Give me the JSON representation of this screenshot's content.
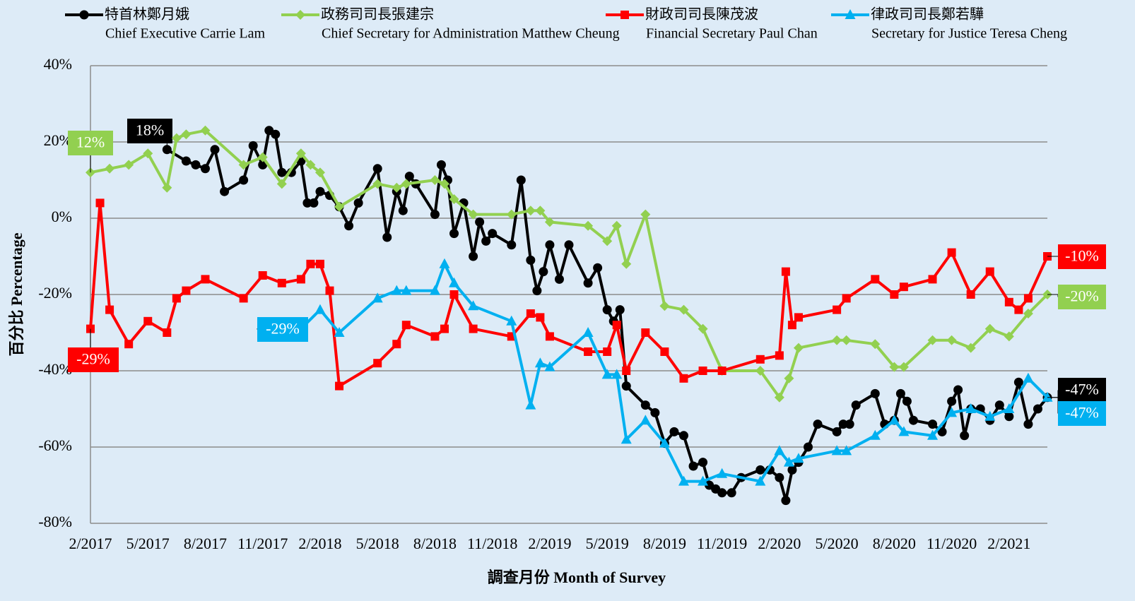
{
  "chart_data": {
    "type": "line",
    "x_label": "調查月份 Month of Survey",
    "y_label": "百分比 Percentage",
    "xlim": [
      "2/2017",
      "4/2021"
    ],
    "xticks": [
      "2/2017",
      "5/2017",
      "8/2017",
      "11/2017",
      "2/2018",
      "5/2018",
      "8/2018",
      "11/2018",
      "2/2019",
      "5/2019",
      "8/2019",
      "11/2019",
      "2/2020",
      "5/2020",
      "8/2020",
      "11/2020",
      "2/2021"
    ],
    "ylim": [
      -80,
      40
    ],
    "yticks": [
      {
        "value": -80,
        "label": "-80%"
      },
      {
        "value": -60,
        "label": "-60%"
      },
      {
        "value": -40,
        "label": "-40%"
      },
      {
        "value": -20,
        "label": "-20%"
      },
      {
        "value": 0,
        "label": "0%"
      },
      {
        "value": 20,
        "label": "20%"
      },
      {
        "value": 40,
        "label": "40%"
      }
    ],
    "grid": true,
    "series": [
      {
        "name": "特首林鄭月娥",
        "name_en": "Chief Executive Carrie Lam",
        "color": "#000000",
        "marker": "circle",
        "x": [
          "6/2017",
          "7/2017",
          "7/2017",
          "8/2017",
          "8/2017",
          "9/2017",
          "10/2017",
          "10/2017",
          "11/2017",
          "11/2017",
          "11/2017",
          "12/2017",
          "12/2017",
          "1/2018",
          "1/2018",
          "1/2018",
          "2/2018",
          "2/2018",
          "3/2018",
          "3/2018",
          "4/2018",
          "5/2018",
          "5/2018",
          "6/2018",
          "6/2018",
          "6/2018",
          "7/2018",
          "8/2018",
          "8/2018",
          "8/2018",
          "9/2018",
          "9/2018",
          "10/2018",
          "10/2018",
          "10/2018",
          "11/2018",
          "12/2018",
          "12/2018",
          "1/2019",
          "1/2019",
          "1/2019",
          "2/2019",
          "2/2019",
          "3/2019",
          "4/2019",
          "4/2019",
          "5/2019",
          "5/2019",
          "5/2019",
          "6/2019",
          "7/2019",
          "7/2019",
          "8/2019",
          "8/2019",
          "9/2019",
          "9/2019",
          "10/2019",
          "10/2019",
          "10/2019",
          "11/2019",
          "11/2019",
          "12/2019",
          "1/2020",
          "1/2020",
          "2/2020",
          "2/2020",
          "2/2020",
          "3/2020",
          "3/2020",
          "4/2020",
          "5/2020",
          "5/2020",
          "5/2020",
          "6/2020",
          "7/2020",
          "7/2020",
          "8/2020",
          "8/2020",
          "8/2020",
          "9/2020",
          "10/2020",
          "10/2020",
          "11/2020",
          "11/2020",
          "11/2020",
          "12/2020",
          "12/2020",
          "1/2021",
          "1/2021",
          "2/2021",
          "2/2021",
          "3/2021",
          "3/2021",
          "4/2021"
        ],
        "values": [
          18,
          15,
          14,
          13,
          18,
          7,
          10,
          19,
          14,
          23,
          22,
          12,
          12,
          15,
          4,
          4,
          7,
          6,
          3,
          -2,
          4,
          13,
          -5,
          7,
          2,
          11,
          9,
          1,
          14,
          10,
          -4,
          4,
          -10,
          -1,
          -6,
          -4,
          -7,
          10,
          -11,
          -19,
          -14,
          -7,
          -16,
          -7,
          -17,
          -13,
          -24,
          -27,
          -24,
          -44,
          -49,
          -51,
          -59,
          -56,
          -57,
          -65,
          -64,
          -70,
          -71,
          -72,
          -72,
          -68,
          -66,
          -66,
          -68,
          -74,
          -66,
          -64,
          -60,
          -54,
          -56,
          -54,
          -54,
          -49,
          -46,
          -54,
          -53,
          -46,
          -48,
          -53,
          -54,
          -56,
          -48,
          -45,
          -57,
          -50,
          -50,
          -53,
          -49,
          -52,
          -43,
          -54,
          -50,
          -47
        ],
        "value_labels": [
          "18%",
          null,
          null,
          null,
          null,
          null,
          null,
          null,
          null,
          null,
          null,
          null,
          null,
          null,
          null,
          null,
          null,
          null,
          null,
          null,
          null,
          null,
          null,
          null,
          null,
          null,
          null,
          null,
          null,
          null,
          null,
          null,
          null,
          null,
          null,
          null,
          null,
          null,
          null,
          null,
          null,
          null,
          null,
          null,
          null,
          null,
          null,
          null,
          null,
          null,
          null,
          null,
          null,
          null,
          null,
          null,
          null,
          null,
          null,
          null,
          null,
          null,
          null,
          null,
          null,
          null,
          null,
          null,
          null,
          null,
          null,
          null,
          null,
          null,
          null,
          null,
          null,
          null,
          null,
          null,
          null,
          null,
          null,
          null,
          null,
          null,
          null,
          null,
          null,
          null,
          null,
          null,
          null,
          "-47%"
        ]
      },
      {
        "name": "政務司司長張建宗",
        "name_en": "Chief Secretary for Administration Matthew Cheung",
        "color": "#92d050",
        "marker": "diamond",
        "x": [
          "2/2017",
          "3/2017",
          "4/2017",
          "5/2017",
          "6/2017",
          "6/2017",
          "7/2017",
          "8/2017",
          "10/2017",
          "11/2017",
          "12/2017",
          "1/2018",
          "1/2018",
          "2/2018",
          "3/2018",
          "5/2018",
          "6/2018",
          "6/2018",
          "8/2018",
          "8/2018",
          "9/2018",
          "10/2018",
          "12/2018",
          "1/2019",
          "1/2019",
          "2/2019",
          "4/2019",
          "5/2019",
          "5/2019",
          "6/2019",
          "7/2019",
          "8/2019",
          "9/2019",
          "10/2019",
          "11/2019",
          "1/2020",
          "2/2020",
          "2/2020",
          "3/2020",
          "5/2020",
          "5/2020",
          "7/2020",
          "8/2020",
          "8/2020",
          "10/2020",
          "11/2020",
          "12/2020",
          "1/2021",
          "2/2021",
          "3/2021",
          "4/2021"
        ],
        "values": [
          12,
          13,
          14,
          17,
          8,
          21,
          22,
          23,
          14,
          16,
          9,
          17,
          14,
          12,
          3,
          9,
          8,
          9,
          10,
          9,
          5,
          1,
          1,
          2,
          2,
          -1,
          -2,
          -6,
          -2,
          -12,
          1,
          -23,
          -24,
          -29,
          -40,
          -40,
          -47,
          -42,
          -34,
          -32,
          -32,
          -33,
          -39,
          -39,
          -32,
          -32,
          -34,
          -29,
          -31,
          -25,
          -20
        ],
        "value_labels": [
          "12%",
          null,
          null,
          null,
          null,
          null,
          null,
          null,
          null,
          null,
          null,
          null,
          null,
          null,
          null,
          null,
          null,
          null,
          null,
          null,
          null,
          null,
          null,
          null,
          null,
          null,
          null,
          null,
          null,
          null,
          null,
          null,
          null,
          null,
          null,
          null,
          null,
          null,
          null,
          null,
          null,
          null,
          null,
          null,
          null,
          null,
          null,
          null,
          null,
          null,
          "-20%"
        ]
      },
      {
        "name": "財政司司長陳茂波",
        "name_en": "Financial Secretary Paul Chan",
        "color": "#ff0000",
        "marker": "square",
        "x": [
          "2/2017",
          "2/2017",
          "3/2017",
          "4/2017",
          "5/2017",
          "6/2017",
          "6/2017",
          "7/2017",
          "8/2017",
          "10/2017",
          "11/2017",
          "12/2017",
          "1/2018",
          "1/2018",
          "2/2018",
          "2/2018",
          "3/2018",
          "5/2018",
          "6/2018",
          "6/2018",
          "8/2018",
          "8/2018",
          "9/2018",
          "10/2018",
          "12/2018",
          "1/2019",
          "1/2019",
          "2/2019",
          "4/2019",
          "5/2019",
          "5/2019",
          "6/2019",
          "7/2019",
          "8/2019",
          "9/2019",
          "10/2019",
          "11/2019",
          "1/2020",
          "2/2020",
          "2/2020",
          "2/2020",
          "3/2020",
          "5/2020",
          "5/2020",
          "7/2020",
          "8/2020",
          "8/2020",
          "10/2020",
          "11/2020",
          "12/2020",
          "1/2021",
          "2/2021",
          "2/2021",
          "3/2021",
          "4/2021"
        ],
        "values": [
          -29,
          4,
          -24,
          -33,
          -27,
          -30,
          -21,
          -19,
          -16,
          -21,
          -15,
          -17,
          -16,
          -12,
          -12,
          -19,
          -44,
          -38,
          -33,
          -28,
          -31,
          -29,
          -20,
          -29,
          -31,
          -25,
          -26,
          -31,
          -35,
          -35,
          -28,
          -40,
          -30,
          -35,
          -42,
          -40,
          -40,
          -37,
          -36,
          -14,
          -28,
          -26,
          -24,
          -21,
          -16,
          -20,
          -18,
          -16,
          -9,
          -20,
          -14,
          -22,
          -24,
          -21,
          -10
        ],
        "value_labels": [
          "-29%",
          null,
          null,
          null,
          null,
          null,
          null,
          null,
          null,
          null,
          null,
          null,
          null,
          null,
          null,
          null,
          null,
          null,
          null,
          null,
          null,
          null,
          null,
          null,
          null,
          null,
          null,
          null,
          null,
          null,
          null,
          null,
          null,
          null,
          null,
          null,
          null,
          null,
          null,
          null,
          null,
          null,
          null,
          null,
          null,
          null,
          null,
          null,
          null,
          null,
          null,
          null,
          null,
          null,
          "-10%"
        ]
      },
      {
        "name": "律政司司長鄭若驊",
        "name_en": "Secretary for Justice Teresa Cheng",
        "color": "#00b0f0",
        "marker": "triangle",
        "x": [
          "1/2018",
          "2/2018",
          "3/2018",
          "5/2018",
          "6/2018",
          "6/2018",
          "8/2018",
          "8/2018",
          "9/2018",
          "10/2018",
          "12/2018",
          "1/2019",
          "1/2019",
          "2/2019",
          "4/2019",
          "5/2019",
          "5/2019",
          "6/2019",
          "7/2019",
          "8/2019",
          "9/2019",
          "10/2019",
          "11/2019",
          "1/2020",
          "2/2020",
          "2/2020",
          "3/2020",
          "5/2020",
          "5/2020",
          "7/2020",
          "8/2020",
          "8/2020",
          "10/2020",
          "11/2020",
          "12/2020",
          "1/2021",
          "2/2021",
          "3/2021",
          "4/2021"
        ],
        "values": [
          -29,
          -24,
          -30,
          -21,
          -19,
          -19,
          -19,
          -12,
          -17,
          -23,
          -27,
          -49,
          -38,
          -39,
          -30,
          -41,
          -41,
          -58,
          -53,
          -59,
          -69,
          -69,
          -67,
          -69,
          -61,
          -64,
          -63,
          -61,
          -61,
          -57,
          -53,
          -56,
          -57,
          -51,
          -50,
          -52,
          -50,
          -42,
          -47
        ],
        "value_labels": [
          "-29%",
          null,
          null,
          null,
          null,
          null,
          null,
          null,
          null,
          null,
          null,
          null,
          null,
          null,
          null,
          null,
          null,
          null,
          null,
          null,
          null,
          null,
          null,
          null,
          null,
          null,
          null,
          null,
          null,
          null,
          null,
          null,
          null,
          null,
          null,
          null,
          null,
          null,
          "-47%"
        ]
      }
    ]
  }
}
